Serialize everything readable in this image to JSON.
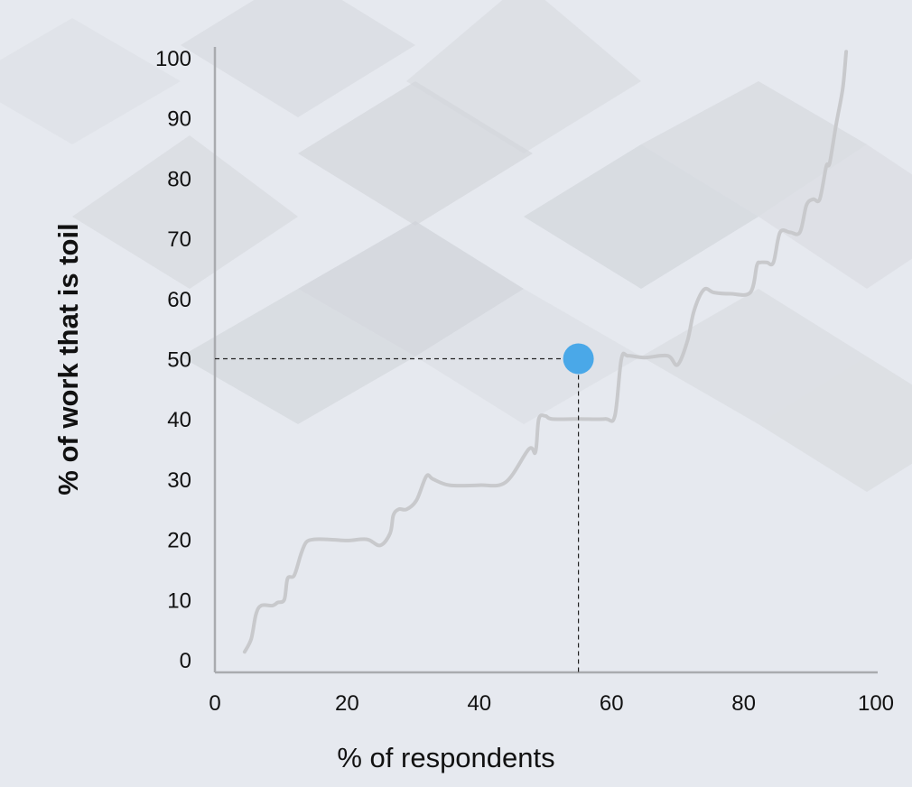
{
  "chart_data": {
    "type": "line",
    "title": "",
    "xlabel": "% of respondents",
    "ylabel": "% of work that is toil",
    "xlim": [
      0,
      100
    ],
    "ylim": [
      0,
      100
    ],
    "x_ticks": [
      0,
      20,
      40,
      60,
      80,
      100
    ],
    "y_ticks": [
      0,
      10,
      20,
      30,
      40,
      50,
      60,
      70,
      80,
      90,
      100
    ],
    "grid": false,
    "legend": "none",
    "series": [
      {
        "x": [
          4.5,
          5.5,
          6.2,
          7.0,
          8.7,
          9.5,
          10.5,
          11.0,
          12.0,
          13.0,
          13.8,
          15.0,
          17.0,
          20.0,
          23.0,
          25.0,
          26.5,
          27.0,
          27.8,
          29.0,
          30.5,
          32.0,
          33.0,
          35.5,
          40.0,
          44.0,
          47.5,
          48.5,
          49.0,
          50.0,
          51.0,
          55.0,
          59.0,
          60.5,
          61.5,
          62.5,
          65.0,
          68.5,
          70.0,
          71.5,
          72.5,
          74.0,
          75.5,
          78.0,
          81.0,
          82.0,
          82.5,
          83.5,
          84.5,
          85.5,
          87.0,
          88.5,
          89.5,
          90.5,
          91.5,
          92.5,
          93.0,
          94.0,
          95.0,
          95.5
        ],
        "y": [
          1.3,
          3.5,
          7.5,
          9.0,
          9.0,
          9.5,
          10.0,
          13.5,
          14.0,
          17.5,
          19.5,
          20.0,
          20.0,
          19.8,
          20.0,
          19.0,
          21.0,
          24.0,
          25.0,
          25.0,
          26.5,
          30.5,
          30.0,
          29.0,
          29.0,
          29.5,
          35.0,
          34.5,
          40.0,
          40.5,
          40.0,
          40.0,
          40.0,
          40.5,
          50.0,
          50.5,
          50.2,
          50.5,
          49.0,
          53.0,
          58.0,
          61.5,
          61.0,
          60.8,
          61.0,
          65.5,
          66.0,
          66.0,
          66.0,
          71.0,
          71.0,
          71.0,
          75.5,
          76.5,
          76.5,
          82.0,
          82.5,
          89.0,
          95.0,
          101.0
        ],
        "color": "#c8c9cc"
      }
    ],
    "highlight_point": {
      "x": 55,
      "y": 50,
      "color": "#4aa8e8"
    }
  }
}
